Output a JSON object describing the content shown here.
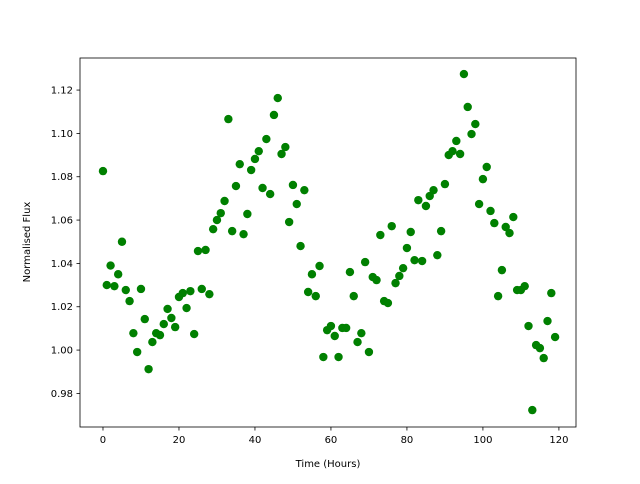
{
  "chart_data": {
    "type": "scatter",
    "title": "",
    "xlabel": "Time (Hours)",
    "ylabel": "Normalised Flux",
    "xlim": [
      -6.05,
      124.5
    ],
    "ylim": [
      0.9645,
      1.1348
    ],
    "xticks": [
      0,
      20,
      40,
      60,
      80,
      100,
      120
    ],
    "yticks": [
      0.98,
      1.0,
      1.02,
      1.04,
      1.06,
      1.08,
      1.1,
      1.12
    ],
    "grid": false,
    "marker_color": "#008000",
    "x": [
      0,
      1,
      2,
      3,
      4,
      5,
      6,
      7,
      8,
      9,
      10,
      11,
      12,
      13,
      14,
      15,
      16,
      17,
      18,
      19,
      20,
      21,
      22,
      23,
      24,
      25,
      26,
      27,
      28,
      29,
      30,
      31,
      32,
      33,
      34,
      35,
      36,
      37,
      38,
      39,
      40,
      41,
      42,
      43,
      44,
      45,
      46,
      47,
      48,
      49,
      50,
      51,
      52,
      53,
      54,
      55,
      56,
      57,
      58,
      59,
      60,
      61,
      62,
      63,
      64,
      65,
      66,
      67,
      68,
      69,
      70,
      71,
      72,
      73,
      74,
      75,
      76,
      77,
      78,
      79,
      80,
      81,
      82,
      83,
      84,
      85,
      86,
      87,
      88,
      89,
      90,
      91,
      92,
      93,
      94,
      95,
      96,
      97,
      98,
      99,
      100,
      101,
      102,
      103,
      104,
      105,
      106,
      107,
      108,
      109,
      110,
      111,
      112,
      113,
      114,
      115,
      116,
      117,
      118,
      119
    ],
    "y": [
      1.0826,
      1.03,
      1.039,
      1.0295,
      1.035,
      1.05,
      1.0277,
      1.0226,
      1.0078,
      0.9991,
      1.0282,
      1.0143,
      0.9912,
      1.0037,
      1.0078,
      1.0069,
      1.012,
      1.019,
      1.0148,
      1.0106,
      1.0245,
      1.0263,
      1.0194,
      1.0272,
      1.0074,
      1.0457,
      1.0282,
      1.0462,
      1.0258,
      1.0558,
      1.06,
      1.0632,
      1.0688,
      1.1066,
      1.0549,
      1.0757,
      1.0858,
      1.0535,
      1.0628,
      1.0831,
      1.0882,
      1.0918,
      1.0748,
      1.0974,
      1.072,
      1.1085,
      1.1163,
      1.0905,
      1.0937,
      1.0591,
      1.0762,
      1.0674,
      1.048,
      1.0738,
      1.0268,
      1.035,
      1.0249,
      1.0388,
      0.9968,
      1.0092,
      1.0111,
      1.0065,
      0.9968,
      1.0102,
      1.0102,
      1.036,
      1.0249,
      1.0037,
      1.0078,
      1.0406,
      0.9991,
      1.0337,
      1.0323,
      1.0531,
      1.0226,
      1.0217,
      1.0572,
      1.0309,
      1.0342,
      1.0378,
      1.0471,
      1.0545,
      1.0415,
      1.0692,
      1.0411,
      1.0665,
      1.0711,
      1.0738,
      1.0438,
      1.0549,
      1.0766,
      1.09,
      1.0918,
      1.0965,
      1.0905,
      1.1274,
      1.1122,
      1.0997,
      1.1043,
      1.0674,
      1.0789,
      1.0845,
      1.0642,
      1.0586,
      1.0249,
      1.0369,
      1.0568,
      1.054,
      1.0614,
      1.0277,
      1.0277,
      1.0295,
      1.0111,
      0.9723,
      1.0023,
      1.0009,
      0.9963,
      1.0134,
      1.0263,
      1.006
    ]
  }
}
